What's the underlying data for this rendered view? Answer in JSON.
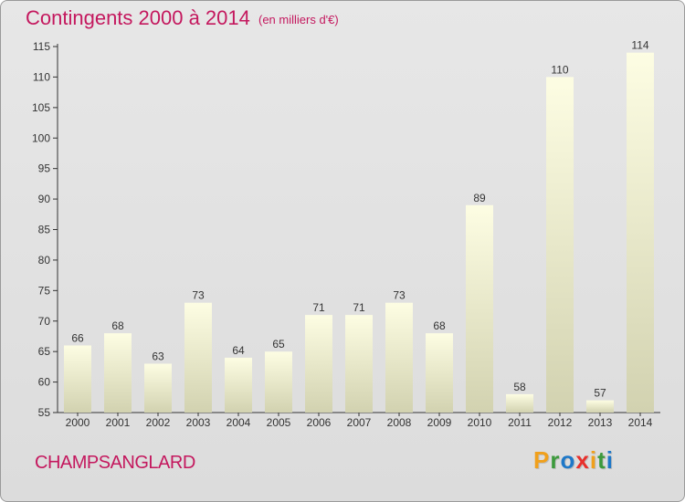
{
  "header": {
    "title": "Contingents 2000 à 2014",
    "subtitle": "(en milliers d'€)"
  },
  "footer": {
    "place_name": "CHAMPSANGLARD",
    "brand_letters": [
      "P",
      "r",
      "o",
      "x",
      "i",
      "t",
      "i"
    ]
  },
  "colors": {
    "title": "#c4185e",
    "bar_light": "#fdfde3",
    "bar_dark": "#d2d2b0",
    "axis": "#333333",
    "grid": "#c8c8c8",
    "brand": [
      "#f0a01c",
      "#3c9a3c",
      "#1e78c8",
      "#e8302c",
      "#f0a01c",
      "#3c9a3c",
      "#1e78c8"
    ]
  },
  "chart_data": {
    "type": "bar",
    "title": "Contingents 2000 à 2014",
    "subtitle": "(en milliers d'€)",
    "xlabel": "",
    "ylabel": "",
    "categories": [
      "2000",
      "2001",
      "2002",
      "2003",
      "2004",
      "2005",
      "2006",
      "2007",
      "2008",
      "2009",
      "2010",
      "2011",
      "2012",
      "2013",
      "2014"
    ],
    "values": [
      66,
      68,
      63,
      73,
      64,
      65,
      71,
      71,
      73,
      68,
      89,
      58,
      110,
      57,
      114
    ],
    "data_labels": [
      "66",
      "68",
      "63",
      "73",
      "64",
      "65",
      "71",
      "71",
      "73",
      "68",
      "89",
      "58",
      "110",
      "57",
      "114"
    ],
    "ylim": [
      55,
      115
    ],
    "yticks": [
      55,
      60,
      65,
      70,
      75,
      80,
      85,
      90,
      95,
      100,
      105,
      110,
      115
    ],
    "grid": false,
    "legend": "none"
  }
}
